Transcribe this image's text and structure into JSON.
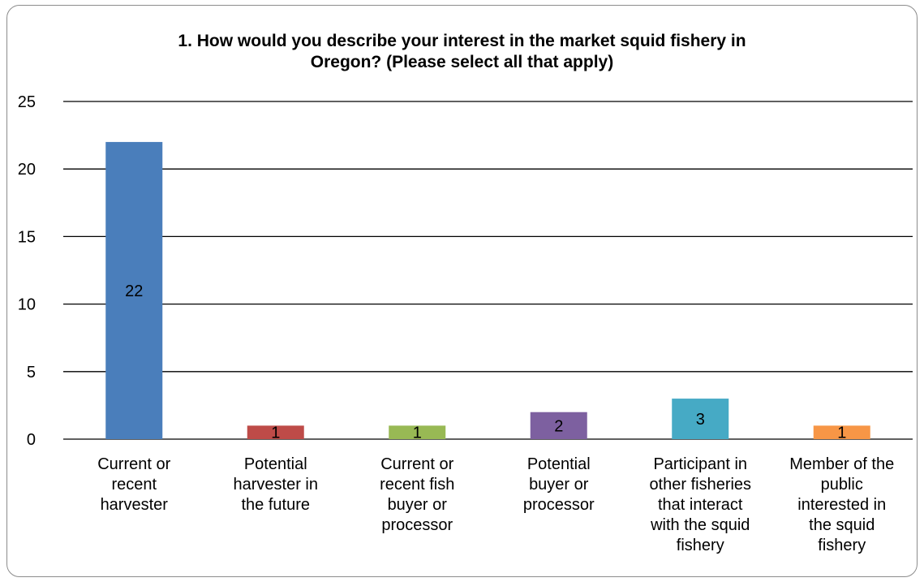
{
  "chart_data": {
    "type": "bar",
    "title": "1.  How would you describe your interest in the market squid fishery in\nOregon? (Please select all that apply)",
    "xlabel": "",
    "ylabel": "",
    "ylim": [
      0,
      25
    ],
    "yticks": [
      0,
      5,
      10,
      15,
      20,
      25
    ],
    "grid": true,
    "legend": "none",
    "categories": [
      [
        "Current or",
        "recent",
        "harvester"
      ],
      [
        "Potential",
        "harvester in",
        "the future"
      ],
      [
        "Current or",
        "recent fish",
        "buyer or",
        "processor"
      ],
      [
        "Potential",
        "buyer or",
        "processor"
      ],
      [
        "Participant in",
        "other fisheries",
        "that interact",
        "with the squid",
        "fishery"
      ],
      [
        "Member of the",
        "public",
        "interested in",
        "the squid",
        "fishery"
      ]
    ],
    "values": [
      22,
      1,
      1,
      2,
      3,
      1
    ],
    "data_labels": [
      "22",
      "1",
      "1",
      "2",
      "3",
      "1"
    ],
    "colors": [
      "#4a7ebb",
      "#be4b48",
      "#98b954",
      "#7d60a0",
      "#46aac5",
      "#f79646"
    ]
  }
}
